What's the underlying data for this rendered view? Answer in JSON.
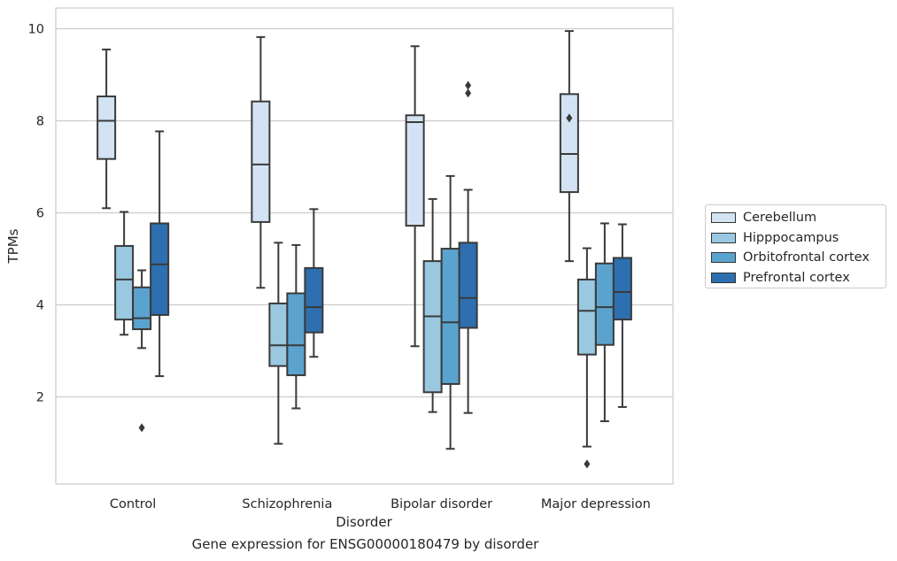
{
  "chart_data": {
    "type": "box",
    "xlabel": "Disorder",
    "ylabel": "TPMs",
    "categories": [
      "Control",
      "Schizophrenia",
      "Bipolar disorder",
      "Major depression"
    ],
    "yticks": [
      2,
      4,
      6,
      8,
      10
    ],
    "ylim": [
      0.1,
      10.45
    ],
    "grid": "horizontal",
    "legend_position": "right",
    "series": [
      {
        "name": "Cerebellum",
        "color": "#d3e3f3",
        "boxes": [
          {
            "whisker_low": 6.1,
            "q1": 7.17,
            "median": 8.0,
            "q3": 8.53,
            "whisker_high": 9.55,
            "outliers": []
          },
          {
            "whisker_low": 4.37,
            "q1": 5.8,
            "median": 7.05,
            "q3": 8.42,
            "whisker_high": 9.82,
            "outliers": []
          },
          {
            "whisker_low": 3.1,
            "q1": 5.72,
            "median": 7.97,
            "q3": 8.12,
            "whisker_high": 9.62,
            "outliers": []
          },
          {
            "whisker_low": 4.95,
            "q1": 6.45,
            "median": 7.28,
            "q3": 8.58,
            "whisker_high": 9.95,
            "outliers": [
              8.06
            ]
          }
        ]
      },
      {
        "name": "Hipppocampus",
        "color": "#9ac8e0",
        "boxes": [
          {
            "whisker_low": 3.35,
            "q1": 3.68,
            "median": 4.55,
            "q3": 5.28,
            "whisker_high": 6.02,
            "outliers": []
          },
          {
            "whisker_low": 0.98,
            "q1": 2.67,
            "median": 3.12,
            "q3": 4.03,
            "whisker_high": 5.35,
            "outliers": []
          },
          {
            "whisker_low": 1.67,
            "q1": 2.1,
            "median": 3.75,
            "q3": 4.95,
            "whisker_high": 6.3,
            "outliers": []
          },
          {
            "whisker_low": 0.92,
            "q1": 2.92,
            "median": 3.87,
            "q3": 4.55,
            "whisker_high": 5.23,
            "outliers": [
              0.54
            ]
          }
        ]
      },
      {
        "name": "Orbitofrontal cortex",
        "color": "#5ba3cf",
        "boxes": [
          {
            "whisker_low": 3.06,
            "q1": 3.47,
            "median": 3.71,
            "q3": 4.38,
            "whisker_high": 4.75,
            "outliers": [
              1.33
            ]
          },
          {
            "whisker_low": 1.75,
            "q1": 2.47,
            "median": 3.12,
            "q3": 4.25,
            "whisker_high": 5.3,
            "outliers": []
          },
          {
            "whisker_low": 0.87,
            "q1": 2.28,
            "median": 3.62,
            "q3": 5.22,
            "whisker_high": 6.8,
            "outliers": []
          },
          {
            "whisker_low": 1.47,
            "q1": 3.13,
            "median": 3.95,
            "q3": 4.9,
            "whisker_high": 5.77,
            "outliers": []
          }
        ]
      },
      {
        "name": "Prefrontal cortex",
        "color": "#2d6fb0",
        "boxes": [
          {
            "whisker_low": 2.45,
            "q1": 3.78,
            "median": 4.88,
            "q3": 5.77,
            "whisker_high": 7.77,
            "outliers": []
          },
          {
            "whisker_low": 2.87,
            "q1": 3.4,
            "median": 3.95,
            "q3": 4.8,
            "whisker_high": 6.08,
            "outliers": []
          },
          {
            "whisker_low": 1.65,
            "q1": 3.5,
            "median": 4.15,
            "q3": 5.35,
            "whisker_high": 6.5,
            "outliers": [
              8.6,
              8.77
            ]
          },
          {
            "whisker_low": 1.78,
            "q1": 3.68,
            "median": 4.28,
            "q3": 5.02,
            "whisker_high": 5.75,
            "outliers": []
          }
        ]
      }
    ]
  },
  "caption": "Gene expression for ENSG00000180479 by disorder"
}
